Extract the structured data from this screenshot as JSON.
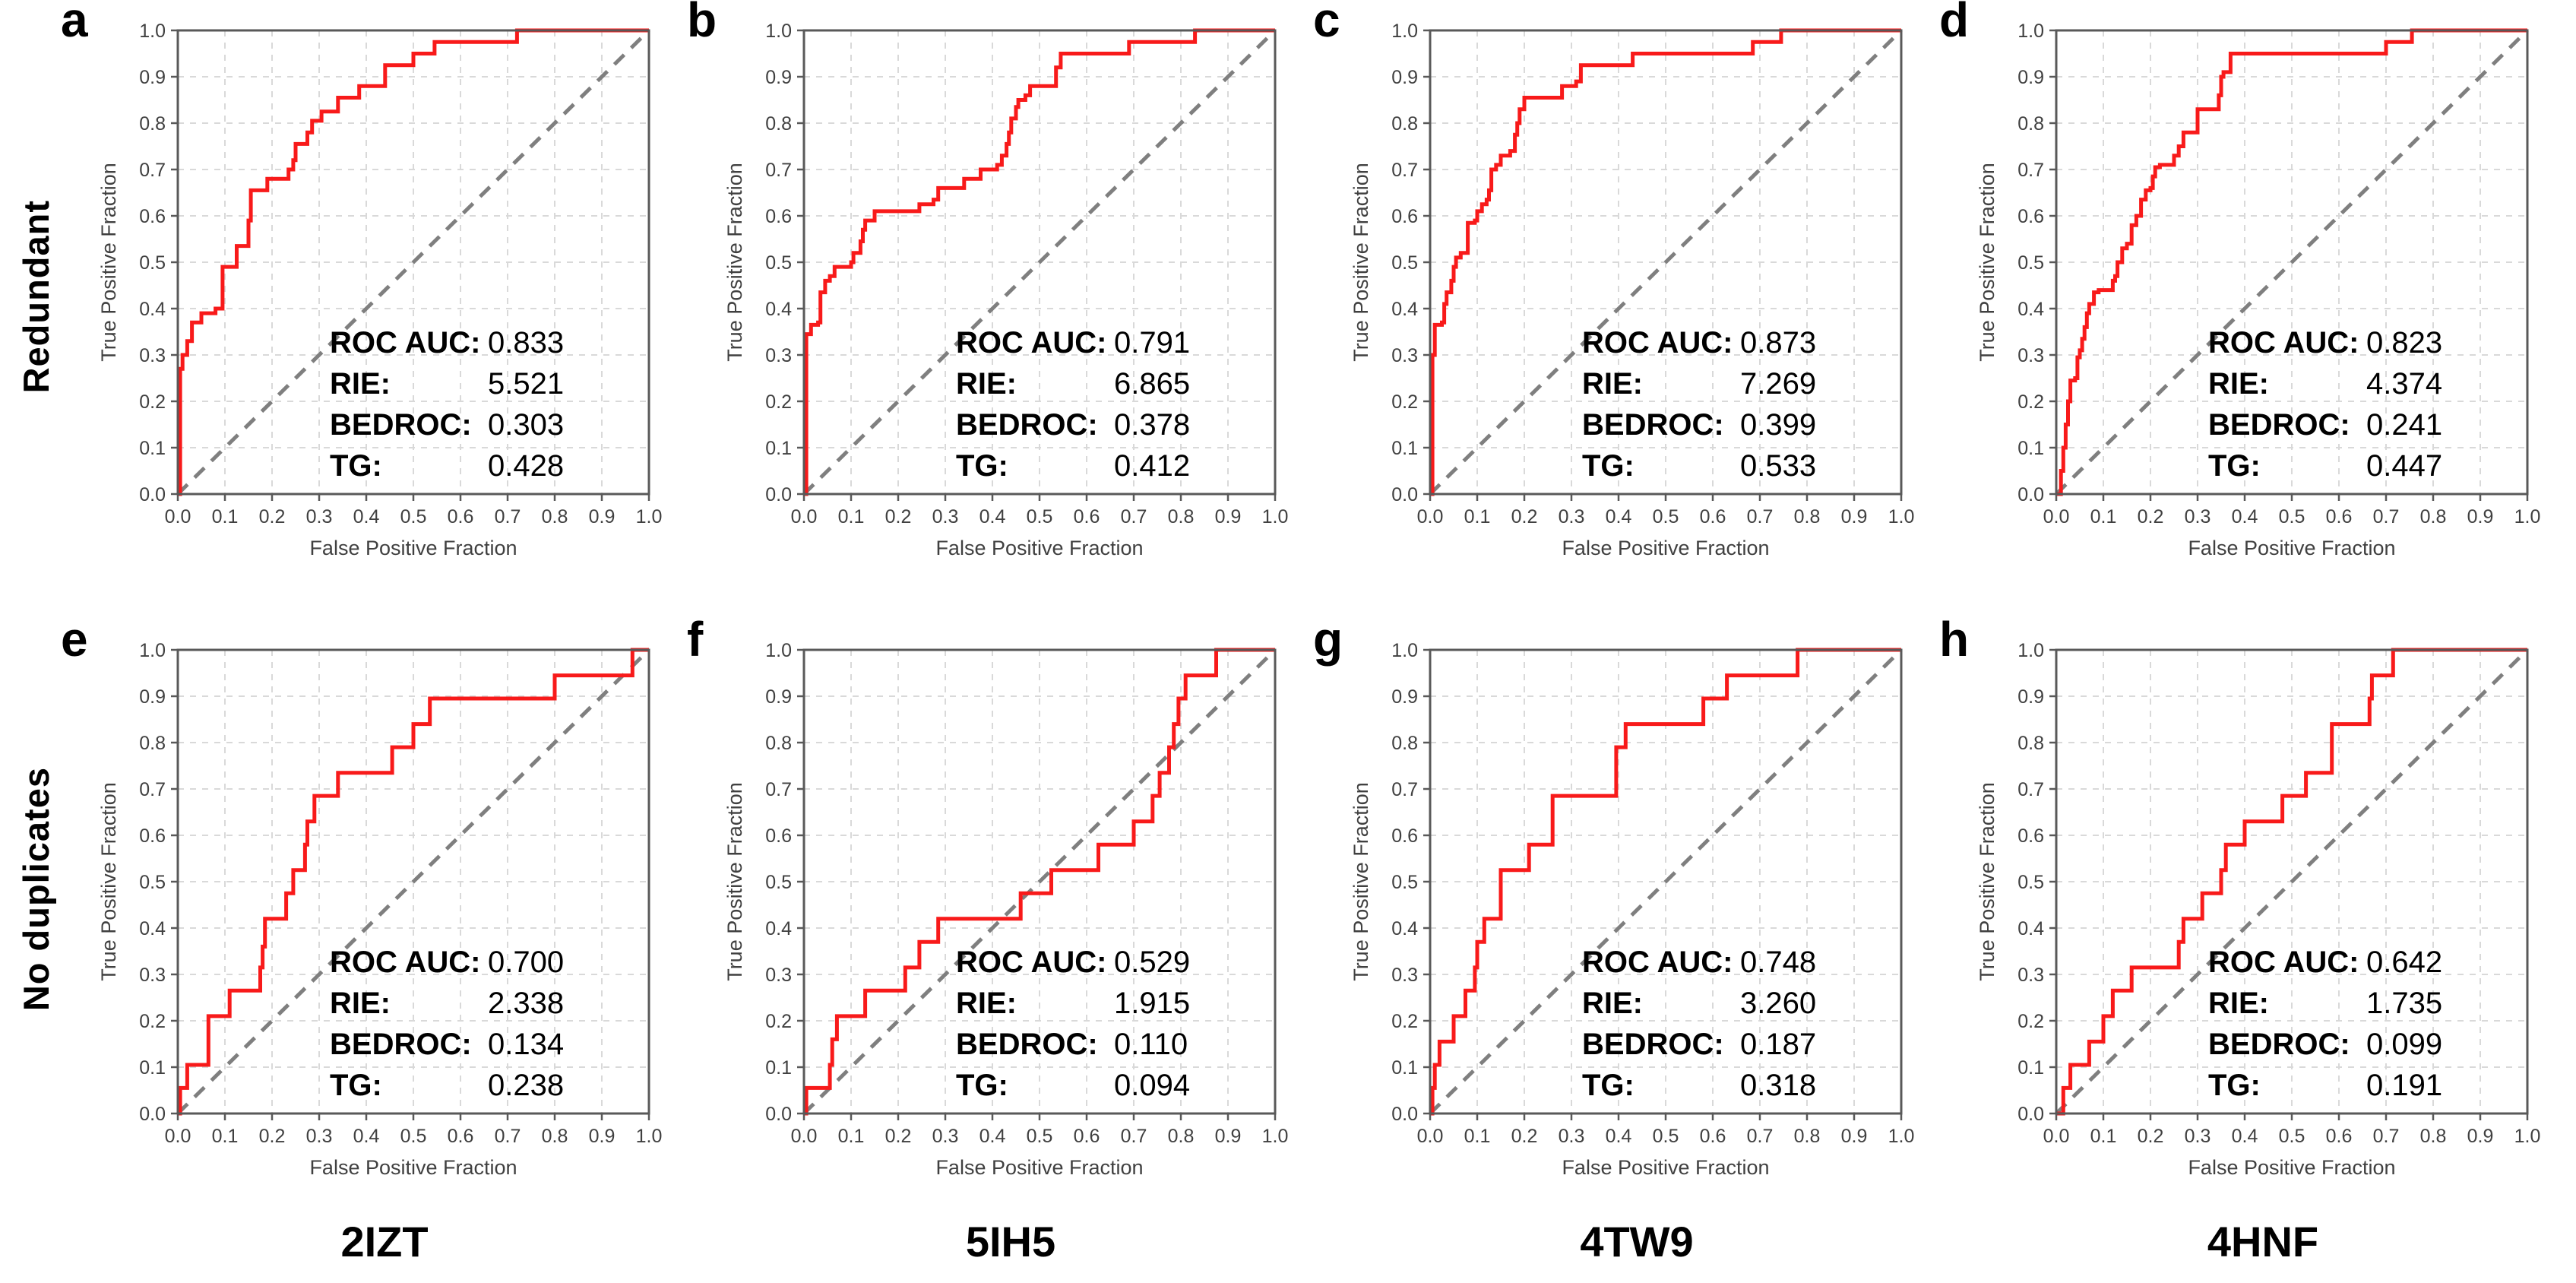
{
  "figure": {
    "row_labels": [
      "Redundant",
      "No duplicates"
    ],
    "column_labels": [
      "2IZT",
      "5IH5",
      "4TW9",
      "4HNF"
    ],
    "colors": {
      "curve": "#f81a1a",
      "diagonal": "#7f7f7f",
      "grid": "#d9d9d9",
      "axis": "#595959",
      "tick_text": "#404040",
      "text": "#000000"
    }
  },
  "axes": {
    "xlabel": "False Positive Fraction",
    "ylabel": "True Positive Fraction",
    "ticks": [
      "0.0",
      "0.1",
      "0.2",
      "0.3",
      "0.4",
      "0.5",
      "0.6",
      "0.7",
      "0.8",
      "0.9",
      "1.0"
    ],
    "xlim": [
      0,
      1
    ],
    "ylim": [
      0,
      1
    ],
    "grid": true
  },
  "stats_labels": {
    "roc_auc": "ROC AUC:",
    "rie": "RIE:",
    "bedroc": "BEDROC:",
    "tg": "TG:"
  },
  "chart_data": [
    {
      "type": "line",
      "panel": "a",
      "target": "2IZT",
      "dataset": "Redundant",
      "stats": {
        "roc_auc": "0.833",
        "rie": "5.521",
        "bedroc": "0.303",
        "tg": "0.428"
      },
      "roc_points": [
        [
          0,
          0
        ],
        [
          0.005,
          0.2
        ],
        [
          0.005,
          0.27
        ],
        [
          0.01,
          0.3
        ],
        [
          0.02,
          0.33
        ],
        [
          0.03,
          0.37
        ],
        [
          0.05,
          0.39
        ],
        [
          0.08,
          0.4
        ],
        [
          0.095,
          0.49
        ],
        [
          0.125,
          0.535
        ],
        [
          0.15,
          0.59
        ],
        [
          0.155,
          0.655
        ],
        [
          0.19,
          0.68
        ],
        [
          0.235,
          0.7
        ],
        [
          0.245,
          0.72
        ],
        [
          0.25,
          0.755
        ],
        [
          0.275,
          0.78
        ],
        [
          0.285,
          0.805
        ],
        [
          0.305,
          0.825
        ],
        [
          0.34,
          0.855
        ],
        [
          0.385,
          0.88
        ],
        [
          0.44,
          0.925
        ],
        [
          0.5,
          0.95
        ],
        [
          0.545,
          0.975
        ],
        [
          0.72,
          1.0
        ],
        [
          1.0,
          1.0
        ]
      ]
    },
    {
      "type": "line",
      "panel": "b",
      "target": "5IH5",
      "dataset": "Redundant",
      "stats": {
        "roc_auc": "0.791",
        "rie": "6.865",
        "bedroc": "0.378",
        "tg": "0.412"
      },
      "roc_points": [
        [
          0,
          0
        ],
        [
          0.005,
          0.345
        ],
        [
          0.015,
          0.365
        ],
        [
          0.03,
          0.37
        ],
        [
          0.035,
          0.435
        ],
        [
          0.045,
          0.46
        ],
        [
          0.055,
          0.47
        ],
        [
          0.065,
          0.49
        ],
        [
          0.1,
          0.5
        ],
        [
          0.105,
          0.52
        ],
        [
          0.12,
          0.545
        ],
        [
          0.125,
          0.57
        ],
        [
          0.13,
          0.59
        ],
        [
          0.15,
          0.61
        ],
        [
          0.245,
          0.625
        ],
        [
          0.275,
          0.635
        ],
        [
          0.285,
          0.66
        ],
        [
          0.34,
          0.68
        ],
        [
          0.375,
          0.7
        ],
        [
          0.41,
          0.71
        ],
        [
          0.42,
          0.73
        ],
        [
          0.43,
          0.755
        ],
        [
          0.435,
          0.78
        ],
        [
          0.44,
          0.81
        ],
        [
          0.45,
          0.835
        ],
        [
          0.455,
          0.85
        ],
        [
          0.47,
          0.86
        ],
        [
          0.48,
          0.88
        ],
        [
          0.535,
          0.92
        ],
        [
          0.545,
          0.95
        ],
        [
          0.69,
          0.975
        ],
        [
          0.83,
          1.0
        ],
        [
          1.0,
          1.0
        ]
      ]
    },
    {
      "type": "line",
      "panel": "c",
      "target": "4TW9",
      "dataset": "Redundant",
      "stats": {
        "roc_auc": "0.873",
        "rie": "7.269",
        "bedroc": "0.399",
        "tg": "0.533"
      },
      "roc_points": [
        [
          0,
          0
        ],
        [
          0.005,
          0.3
        ],
        [
          0.01,
          0.365
        ],
        [
          0.025,
          0.37
        ],
        [
          0.03,
          0.41
        ],
        [
          0.035,
          0.435
        ],
        [
          0.045,
          0.46
        ],
        [
          0.05,
          0.49
        ],
        [
          0.055,
          0.51
        ],
        [
          0.065,
          0.52
        ],
        [
          0.08,
          0.585
        ],
        [
          0.095,
          0.59
        ],
        [
          0.1,
          0.61
        ],
        [
          0.11,
          0.625
        ],
        [
          0.12,
          0.635
        ],
        [
          0.125,
          0.655
        ],
        [
          0.13,
          0.7
        ],
        [
          0.14,
          0.71
        ],
        [
          0.15,
          0.73
        ],
        [
          0.17,
          0.74
        ],
        [
          0.18,
          0.775
        ],
        [
          0.185,
          0.8
        ],
        [
          0.19,
          0.83
        ],
        [
          0.2,
          0.855
        ],
        [
          0.28,
          0.88
        ],
        [
          0.31,
          0.89
        ],
        [
          0.32,
          0.925
        ],
        [
          0.43,
          0.95
        ],
        [
          0.685,
          0.975
        ],
        [
          0.745,
          1.0
        ],
        [
          1.0,
          1.0
        ]
      ]
    },
    {
      "type": "line",
      "panel": "d",
      "target": "4HNF",
      "dataset": "Redundant",
      "stats": {
        "roc_auc": "0.823",
        "rie": "4.374",
        "bedroc": "0.241",
        "tg": "0.447"
      },
      "roc_points": [
        [
          0,
          0
        ],
        [
          0.01,
          0.05
        ],
        [
          0.015,
          0.1
        ],
        [
          0.02,
          0.15
        ],
        [
          0.025,
          0.2
        ],
        [
          0.03,
          0.245
        ],
        [
          0.04,
          0.25
        ],
        [
          0.045,
          0.295
        ],
        [
          0.05,
          0.31
        ],
        [
          0.055,
          0.335
        ],
        [
          0.06,
          0.36
        ],
        [
          0.065,
          0.39
        ],
        [
          0.07,
          0.41
        ],
        [
          0.08,
          0.435
        ],
        [
          0.09,
          0.44
        ],
        [
          0.12,
          0.46
        ],
        [
          0.125,
          0.47
        ],
        [
          0.13,
          0.5
        ],
        [
          0.14,
          0.53
        ],
        [
          0.15,
          0.54
        ],
        [
          0.16,
          0.58
        ],
        [
          0.17,
          0.6
        ],
        [
          0.18,
          0.635
        ],
        [
          0.19,
          0.655
        ],
        [
          0.2,
          0.66
        ],
        [
          0.205,
          0.685
        ],
        [
          0.21,
          0.705
        ],
        [
          0.22,
          0.71
        ],
        [
          0.25,
          0.73
        ],
        [
          0.26,
          0.75
        ],
        [
          0.27,
          0.78
        ],
        [
          0.3,
          0.83
        ],
        [
          0.345,
          0.86
        ],
        [
          0.35,
          0.9
        ],
        [
          0.355,
          0.91
        ],
        [
          0.37,
          0.95
        ],
        [
          0.7,
          0.975
        ],
        [
          0.755,
          1.0
        ],
        [
          1.0,
          1.0
        ]
      ]
    },
    {
      "type": "line",
      "panel": "e",
      "target": "2IZT",
      "dataset": "No duplicates",
      "stats": {
        "roc_auc": "0.700",
        "rie": "2.338",
        "bedroc": "0.134",
        "tg": "0.238"
      },
      "roc_points": [
        [
          0,
          0
        ],
        [
          0.005,
          0.055
        ],
        [
          0.02,
          0.105
        ],
        [
          0.065,
          0.21
        ],
        [
          0.11,
          0.265
        ],
        [
          0.175,
          0.315
        ],
        [
          0.18,
          0.36
        ],
        [
          0.185,
          0.42
        ],
        [
          0.23,
          0.475
        ],
        [
          0.245,
          0.525
        ],
        [
          0.27,
          0.58
        ],
        [
          0.275,
          0.63
        ],
        [
          0.29,
          0.685
        ],
        [
          0.34,
          0.735
        ],
        [
          0.455,
          0.79
        ],
        [
          0.5,
          0.84
        ],
        [
          0.535,
          0.895
        ],
        [
          0.8,
          0.945
        ],
        [
          0.965,
          1.0
        ],
        [
          1.0,
          1.0
        ]
      ]
    },
    {
      "type": "line",
      "panel": "f",
      "target": "5IH5",
      "dataset": "No duplicates",
      "stats": {
        "roc_auc": "0.529",
        "rie": "1.915",
        "bedroc": "0.110",
        "tg": "0.094"
      },
      "roc_points": [
        [
          0,
          0
        ],
        [
          0.005,
          0.055
        ],
        [
          0.055,
          0.105
        ],
        [
          0.06,
          0.16
        ],
        [
          0.07,
          0.21
        ],
        [
          0.13,
          0.265
        ],
        [
          0.215,
          0.315
        ],
        [
          0.245,
          0.37
        ],
        [
          0.285,
          0.42
        ],
        [
          0.46,
          0.475
        ],
        [
          0.525,
          0.525
        ],
        [
          0.625,
          0.58
        ],
        [
          0.7,
          0.63
        ],
        [
          0.74,
          0.685
        ],
        [
          0.755,
          0.735
        ],
        [
          0.775,
          0.79
        ],
        [
          0.785,
          0.84
        ],
        [
          0.795,
          0.895
        ],
        [
          0.81,
          0.945
        ],
        [
          0.875,
          1.0
        ],
        [
          1.0,
          1.0
        ]
      ]
    },
    {
      "type": "line",
      "panel": "g",
      "target": "4TW9",
      "dataset": "No duplicates",
      "stats": {
        "roc_auc": "0.748",
        "rie": "3.260",
        "bedroc": "0.187",
        "tg": "0.318"
      },
      "roc_points": [
        [
          0,
          0
        ],
        [
          0.005,
          0.055
        ],
        [
          0.01,
          0.105
        ],
        [
          0.02,
          0.155
        ],
        [
          0.05,
          0.21
        ],
        [
          0.075,
          0.265
        ],
        [
          0.095,
          0.315
        ],
        [
          0.1,
          0.37
        ],
        [
          0.115,
          0.42
        ],
        [
          0.15,
          0.525
        ],
        [
          0.21,
          0.58
        ],
        [
          0.26,
          0.685
        ],
        [
          0.395,
          0.79
        ],
        [
          0.415,
          0.84
        ],
        [
          0.58,
          0.895
        ],
        [
          0.63,
          0.945
        ],
        [
          0.78,
          1.0
        ],
        [
          1.0,
          1.0
        ]
      ]
    },
    {
      "type": "line",
      "panel": "h",
      "target": "4HNF",
      "dataset": "No duplicates",
      "stats": {
        "roc_auc": "0.642",
        "rie": "1.735",
        "bedroc": "0.099",
        "tg": "0.191"
      },
      "roc_points": [
        [
          0,
          0
        ],
        [
          0.015,
          0.055
        ],
        [
          0.03,
          0.105
        ],
        [
          0.07,
          0.155
        ],
        [
          0.1,
          0.21
        ],
        [
          0.12,
          0.265
        ],
        [
          0.16,
          0.315
        ],
        [
          0.26,
          0.37
        ],
        [
          0.27,
          0.42
        ],
        [
          0.31,
          0.475
        ],
        [
          0.35,
          0.525
        ],
        [
          0.36,
          0.58
        ],
        [
          0.4,
          0.63
        ],
        [
          0.48,
          0.685
        ],
        [
          0.53,
          0.735
        ],
        [
          0.585,
          0.84
        ],
        [
          0.665,
          0.895
        ],
        [
          0.67,
          0.945
        ],
        [
          0.715,
          1.0
        ],
        [
          1.0,
          1.0
        ]
      ]
    }
  ]
}
